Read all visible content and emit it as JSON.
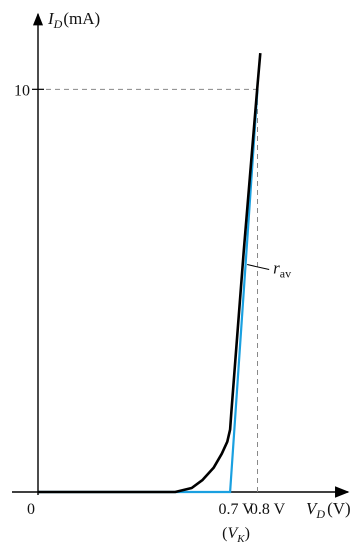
{
  "chart_data": {
    "type": "line",
    "xlabel": "V",
    "xlabel_sub": "D",
    "xlabel_unit": "(V)",
    "ylabel": "I",
    "ylabel_sub": "D",
    "ylabel_unit": "(mA)",
    "origin_label": "0",
    "xlim": [
      0,
      0.82
    ],
    "ylim": [
      0,
      11.2
    ],
    "y_ticks": [
      {
        "value": 10,
        "label": "10"
      }
    ],
    "x_ticks": [
      {
        "value": 0.7,
        "label": "0.7 V"
      },
      {
        "value": 0.8,
        "label": "0.8 V"
      }
    ],
    "knee_label": {
      "prefix": "(",
      "main": "V",
      "sub": "K",
      "suffix": ")"
    },
    "series": [
      {
        "role": "characteristic",
        "color": "#000000",
        "x": [
          0,
          0.5,
          0.56,
          0.6,
          0.64,
          0.67,
          0.69,
          0.7,
          0.705,
          0.75,
          0.8,
          0.81
        ],
        "y": [
          0,
          0.0,
          0.1,
          0.3,
          0.6,
          0.95,
          1.25,
          1.55,
          2.0,
          6.0,
          10.1,
          10.9
        ]
      },
      {
        "role": "piecewise-linear",
        "color": "#1aa0e0",
        "x": [
          0,
          0.7,
          0.8
        ],
        "y": [
          0,
          0,
          10
        ]
      }
    ],
    "annotation": {
      "text": "r",
      "sub": "av",
      "at_x": 0.755,
      "at_y": 5.5
    },
    "reference_lines": [
      {
        "from": [
          0,
          10
        ],
        "to": [
          0.8,
          10
        ],
        "style": "dashed"
      },
      {
        "from": [
          0.8,
          0
        ],
        "to": [
          0.8,
          10
        ],
        "style": "dashed"
      }
    ]
  }
}
